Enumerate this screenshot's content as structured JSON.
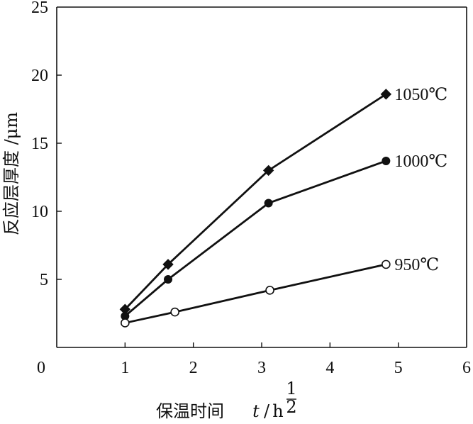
{
  "chart_data": {
    "type": "line",
    "title": "",
    "xlabel": {
      "text": "保温时间",
      "var": "t",
      "slash": "/",
      "unit": "h",
      "exp_num": "1",
      "exp_den": "2"
    },
    "ylabel": "反应层厚度 /μm",
    "xlim": [
      0,
      6
    ],
    "ylim": [
      0,
      25
    ],
    "xticks": [
      {
        "value": 0,
        "label": "0"
      },
      {
        "value": 1,
        "label": "1"
      },
      {
        "value": 2,
        "label": "2"
      },
      {
        "value": 3,
        "label": "3"
      },
      {
        "value": 4,
        "label": "4"
      },
      {
        "value": 5,
        "label": "5"
      },
      {
        "value": 6,
        "label": "6"
      }
    ],
    "yticks": [
      {
        "value": 5,
        "label": "5"
      },
      {
        "value": 10,
        "label": "10"
      },
      {
        "value": 15,
        "label": "15"
      },
      {
        "value": 20,
        "label": "20"
      },
      {
        "value": 25,
        "label": "25"
      }
    ],
    "grid": false,
    "legend": "labels at line ends",
    "series": [
      {
        "name": "1050℃",
        "marker": "diamond",
        "x": [
          1.0,
          1.63,
          3.1,
          4.82
        ],
        "y": [
          2.8,
          6.1,
          13.0,
          18.6
        ]
      },
      {
        "name": "1000℃",
        "marker": "filled-circle",
        "x": [
          1.0,
          1.63,
          3.1,
          4.82
        ],
        "y": [
          2.3,
          5.0,
          10.6,
          13.7
        ]
      },
      {
        "name": "950℃",
        "marker": "open-circle",
        "x": [
          1.0,
          1.73,
          3.12,
          4.82
        ],
        "y": [
          1.8,
          2.6,
          4.2,
          6.1
        ]
      }
    ]
  }
}
